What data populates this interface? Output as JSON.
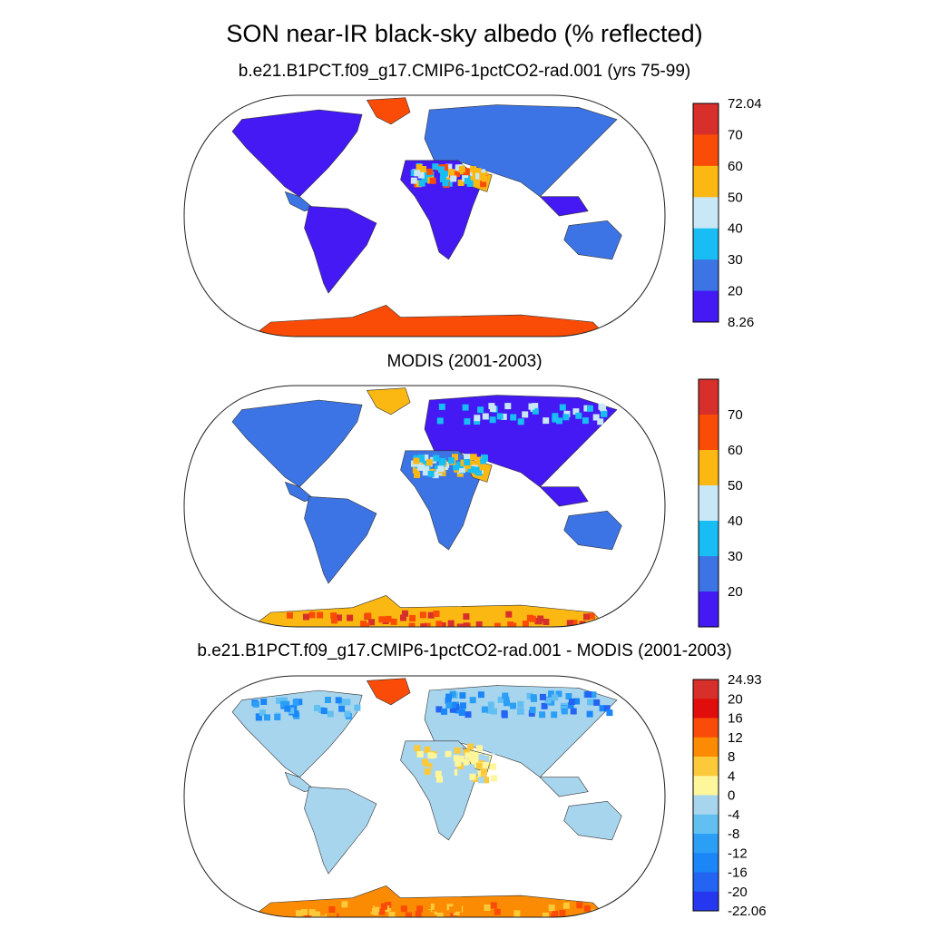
{
  "figure": {
    "title": "SON near-IR black-sky albedo (% reflected)"
  },
  "chart_data": [
    {
      "type": "heatmap",
      "title": "b.e21.B1PCT.f09_g17.CMIP6-1pctCO2-rad.001 (yrs 75-99)",
      "projection": "Robinson",
      "colorbar": {
        "tick_labels": [
          "72.04",
          "70",
          "60",
          "50",
          "40",
          "30",
          "20",
          "8.26"
        ],
        "levels_top_to_bottom": [
          "72.04",
          "70",
          "60",
          "50",
          "40",
          "30",
          "20",
          "8.26"
        ],
        "colors_top_to_bottom": [
          "#d7302b",
          "#fb4c07",
          "#fbb812",
          "#c8e7f7",
          "#17bdf3",
          "#3d74e5",
          "#4419f4"
        ],
        "min": 8.26,
        "max": 72.04
      },
      "regions": [
        {
          "name": "Greenland",
          "value_range": [
            60,
            72
          ]
        },
        {
          "name": "Sahara / Arabia",
          "value_range": [
            40,
            60
          ]
        },
        {
          "name": "Antarctica",
          "value_range": [
            60,
            72
          ]
        },
        {
          "name": "Vegetated continents",
          "value_range": [
            8.26,
            30
          ]
        }
      ]
    },
    {
      "type": "heatmap",
      "title": "MODIS (2001-2003)",
      "projection": "Robinson",
      "colorbar": {
        "tick_labels": [
          "70",
          "60",
          "50",
          "40",
          "30",
          "20"
        ],
        "levels_top_to_bottom": [
          "",
          "70",
          "60",
          "50",
          "40",
          "30",
          "20",
          ""
        ],
        "colors_top_to_bottom": [
          "#d7302b",
          "#fb4c07",
          "#fbb812",
          "#c8e7f7",
          "#17bdf3",
          "#3d74e5",
          "#4419f4"
        ]
      },
      "regions": [
        {
          "name": "Greenland",
          "value_range": [
            50,
            60
          ]
        },
        {
          "name": "Sahara / Arabia",
          "value_range": [
            40,
            60
          ]
        },
        {
          "name": "Antarctica",
          "value_range": [
            50,
            80
          ]
        },
        {
          "name": "Vegetated continents",
          "value_range": [
            20,
            40
          ]
        }
      ]
    },
    {
      "type": "heatmap",
      "title": "b.e21.B1PCT.f09_g17.CMIP6-1pctCO2-rad.001 - MODIS (2001-2003)",
      "projection": "Robinson",
      "colorbar": {
        "tick_labels": [
          "24.93",
          "20",
          "16",
          "12",
          "8",
          "4",
          "0",
          "-4",
          "-8",
          "-12",
          "-16",
          "-20",
          "-22.06"
        ],
        "levels_top_to_bottom": [
          "24.93",
          "20",
          "16",
          "12",
          "8",
          "4",
          "0",
          "-4",
          "-8",
          "-12",
          "-16",
          "-20",
          "-22.06"
        ],
        "colors_top_to_bottom": [
          "#d7302b",
          "#e10d0d",
          "#fa4b08",
          "#fb8b02",
          "#fcc93a",
          "#fef69a",
          "#a8d5ee",
          "#62bff2",
          "#2b9ef6",
          "#1a86f7",
          "#2364f2",
          "#2638ef"
        ],
        "min": -22.06,
        "max": 24.93
      },
      "regions": [
        {
          "name": "Greenland",
          "value_range": [
            12,
            24.93
          ]
        },
        {
          "name": "Northern Eurasia / Canada",
          "value_range": [
            -22.06,
            -4
          ]
        },
        {
          "name": "Sahara / Arabia",
          "value_range": [
            0,
            8
          ]
        },
        {
          "name": "Antarctica",
          "value_range": [
            0,
            16
          ]
        },
        {
          "name": "Most land",
          "value_range": [
            -4,
            0
          ]
        }
      ]
    }
  ]
}
